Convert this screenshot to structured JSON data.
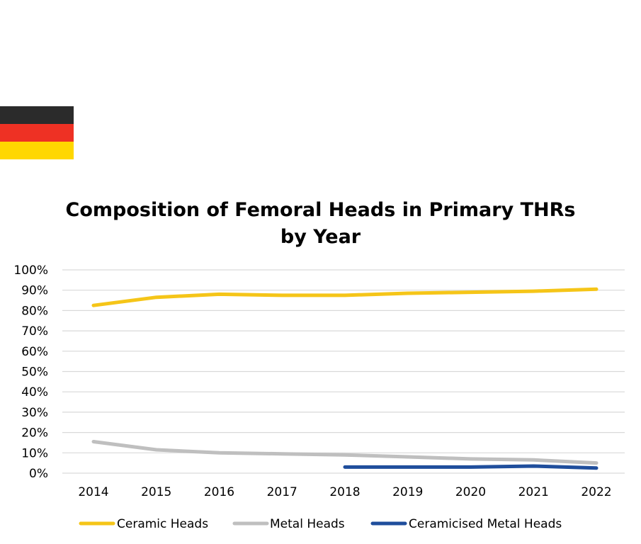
{
  "flag": {
    "name": "Germany",
    "colors": [
      "#2b2b2b",
      "#ee3124",
      "#ffd700"
    ]
  },
  "chart_data": {
    "type": "line",
    "title_line1": "Composition of Femoral Heads in Primary THRs",
    "title_line2": "by Year",
    "x": [
      "2014",
      "2015",
      "2016",
      "2017",
      "2018",
      "2019",
      "2020",
      "2021",
      "2022"
    ],
    "yticks": [
      "0%",
      "10%",
      "20%",
      "30%",
      "40%",
      "50%",
      "60%",
      "70%",
      "80%",
      "90%",
      "100%"
    ],
    "ylim": [
      0,
      100
    ],
    "grid": true,
    "legend_position": "bottom",
    "series": [
      {
        "name": "Ceramic Heads",
        "color": "#f5c518",
        "values": [
          82.5,
          86.5,
          88,
          87.5,
          87.5,
          88.5,
          89,
          89.5,
          90.5
        ]
      },
      {
        "name": "Metal Heads",
        "color": "#bfbfbf",
        "values": [
          15.5,
          11.5,
          10,
          9.5,
          9,
          8,
          7,
          6.5,
          5
        ]
      },
      {
        "name": "Ceramicised Metal Heads",
        "color": "#1f4e9c",
        "values": [
          null,
          null,
          null,
          null,
          3,
          3,
          3,
          3.5,
          2.5
        ]
      }
    ]
  }
}
